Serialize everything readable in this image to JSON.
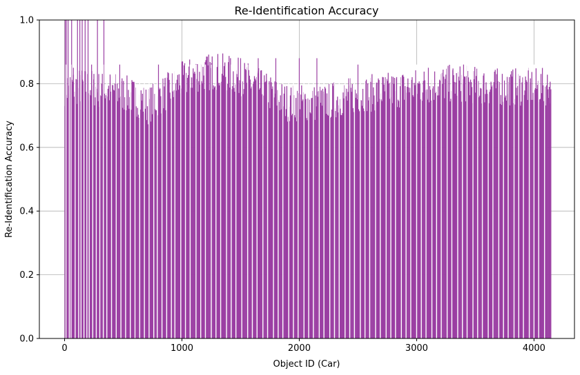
{
  "chart_data": {
    "type": "bar",
    "title": "Re-Identification Accuracy",
    "xlabel": "Object ID (Car)",
    "ylabel": "Re-Identification Accuracy",
    "xlim": [
      -215,
      4345
    ],
    "ylim": [
      0,
      1.0
    ],
    "x_range": [
      0,
      4140
    ],
    "grid": true,
    "bar_color": "#9b3fa3",
    "x_ticks": [
      {
        "value": 0,
        "label": "0"
      },
      {
        "value": 1000,
        "label": "1000"
      },
      {
        "value": 2000,
        "label": "2000"
      },
      {
        "value": 3000,
        "label": "3000"
      },
      {
        "value": 4000,
        "label": "4000"
      }
    ],
    "y_ticks": [
      {
        "value": 0,
        "label": "0.0"
      },
      {
        "value": 0.2,
        "label": "0.2"
      },
      {
        "value": 0.4,
        "label": "0.4"
      },
      {
        "value": 0.6,
        "label": "0.6"
      },
      {
        "value": 0.8,
        "label": "0.8"
      },
      {
        "value": 1.0,
        "label": "1.0"
      }
    ],
    "profile": [
      {
        "x": 0,
        "y": 0.76
      },
      {
        "x": 200,
        "y": 0.76
      },
      {
        "x": 300,
        "y": 0.75
      },
      {
        "x": 400,
        "y": 0.75
      },
      {
        "x": 500,
        "y": 0.74
      },
      {
        "x": 650,
        "y": 0.72
      },
      {
        "x": 700,
        "y": 0.7
      },
      {
        "x": 850,
        "y": 0.74
      },
      {
        "x": 1000,
        "y": 0.78
      },
      {
        "x": 1100,
        "y": 0.8
      },
      {
        "x": 1300,
        "y": 0.81
      },
      {
        "x": 1500,
        "y": 0.79
      },
      {
        "x": 1700,
        "y": 0.75
      },
      {
        "x": 1900,
        "y": 0.71
      },
      {
        "x": 2000,
        "y": 0.71
      },
      {
        "x": 2200,
        "y": 0.71
      },
      {
        "x": 2400,
        "y": 0.73
      },
      {
        "x": 2600,
        "y": 0.74
      },
      {
        "x": 2800,
        "y": 0.75
      },
      {
        "x": 3000,
        "y": 0.76
      },
      {
        "x": 3200,
        "y": 0.77
      },
      {
        "x": 3400,
        "y": 0.77
      },
      {
        "x": 3600,
        "y": 0.76
      },
      {
        "x": 3800,
        "y": 0.76
      },
      {
        "x": 4000,
        "y": 0.76
      },
      {
        "x": 4140,
        "y": 0.76
      }
    ],
    "spikes": [
      {
        "x": 5,
        "y": 1.0
      },
      {
        "x": 15,
        "y": 1.0
      },
      {
        "x": 30,
        "y": 1.0
      },
      {
        "x": 60,
        "y": 1.0
      },
      {
        "x": 75,
        "y": 0.85
      },
      {
        "x": 110,
        "y": 1.0
      },
      {
        "x": 130,
        "y": 1.0
      },
      {
        "x": 150,
        "y": 1.0
      },
      {
        "x": 175,
        "y": 1.0
      },
      {
        "x": 200,
        "y": 1.0
      },
      {
        "x": 230,
        "y": 0.86
      },
      {
        "x": 280,
        "y": 1.0
      },
      {
        "x": 335,
        "y": 1.0
      },
      {
        "x": 470,
        "y": 0.86
      },
      {
        "x": 800,
        "y": 0.86
      },
      {
        "x": 1000,
        "y": 0.87
      },
      {
        "x": 1500,
        "y": 0.88
      },
      {
        "x": 1650,
        "y": 0.88
      },
      {
        "x": 1800,
        "y": 0.88
      },
      {
        "x": 2000,
        "y": 0.88
      },
      {
        "x": 2150,
        "y": 0.88
      },
      {
        "x": 2500,
        "y": 0.86
      },
      {
        "x": 3100,
        "y": 0.85
      },
      {
        "x": 3400,
        "y": 0.86
      },
      {
        "x": 4130,
        "y": 0.79
      }
    ],
    "gaps": [
      12,
      40,
      55,
      90,
      120,
      140,
      165,
      190,
      210,
      240,
      270,
      300,
      330,
      360,
      400,
      440,
      480,
      520,
      560,
      600,
      640,
      680,
      720,
      760,
      790,
      830,
      870,
      910,
      940,
      990,
      1030,
      1070,
      1120,
      1160,
      1200,
      1250,
      1290,
      1330,
      1380,
      1420,
      1460,
      1510,
      1560,
      1600,
      1640,
      1690,
      1730,
      1780,
      1820,
      1860,
      1910,
      1950,
      1990,
      2040,
      2080,
      2120,
      2170,
      2210,
      2260,
      2300,
      2340,
      2390,
      2430,
      2470,
      2520,
      2560,
      2600,
      2650,
      2690,
      2740,
      2780,
      2820,
      2870,
      2910,
      2950,
      3000,
      3040,
      3080,
      3130,
      3170,
      3210,
      3260,
      3300,
      3350,
      3390,
      3430,
      3480,
      3520,
      3560,
      3610,
      3650,
      3700,
      3740,
      3780,
      3830,
      3870,
      3910,
      3960,
      4000,
      4040,
      4090
    ]
  }
}
